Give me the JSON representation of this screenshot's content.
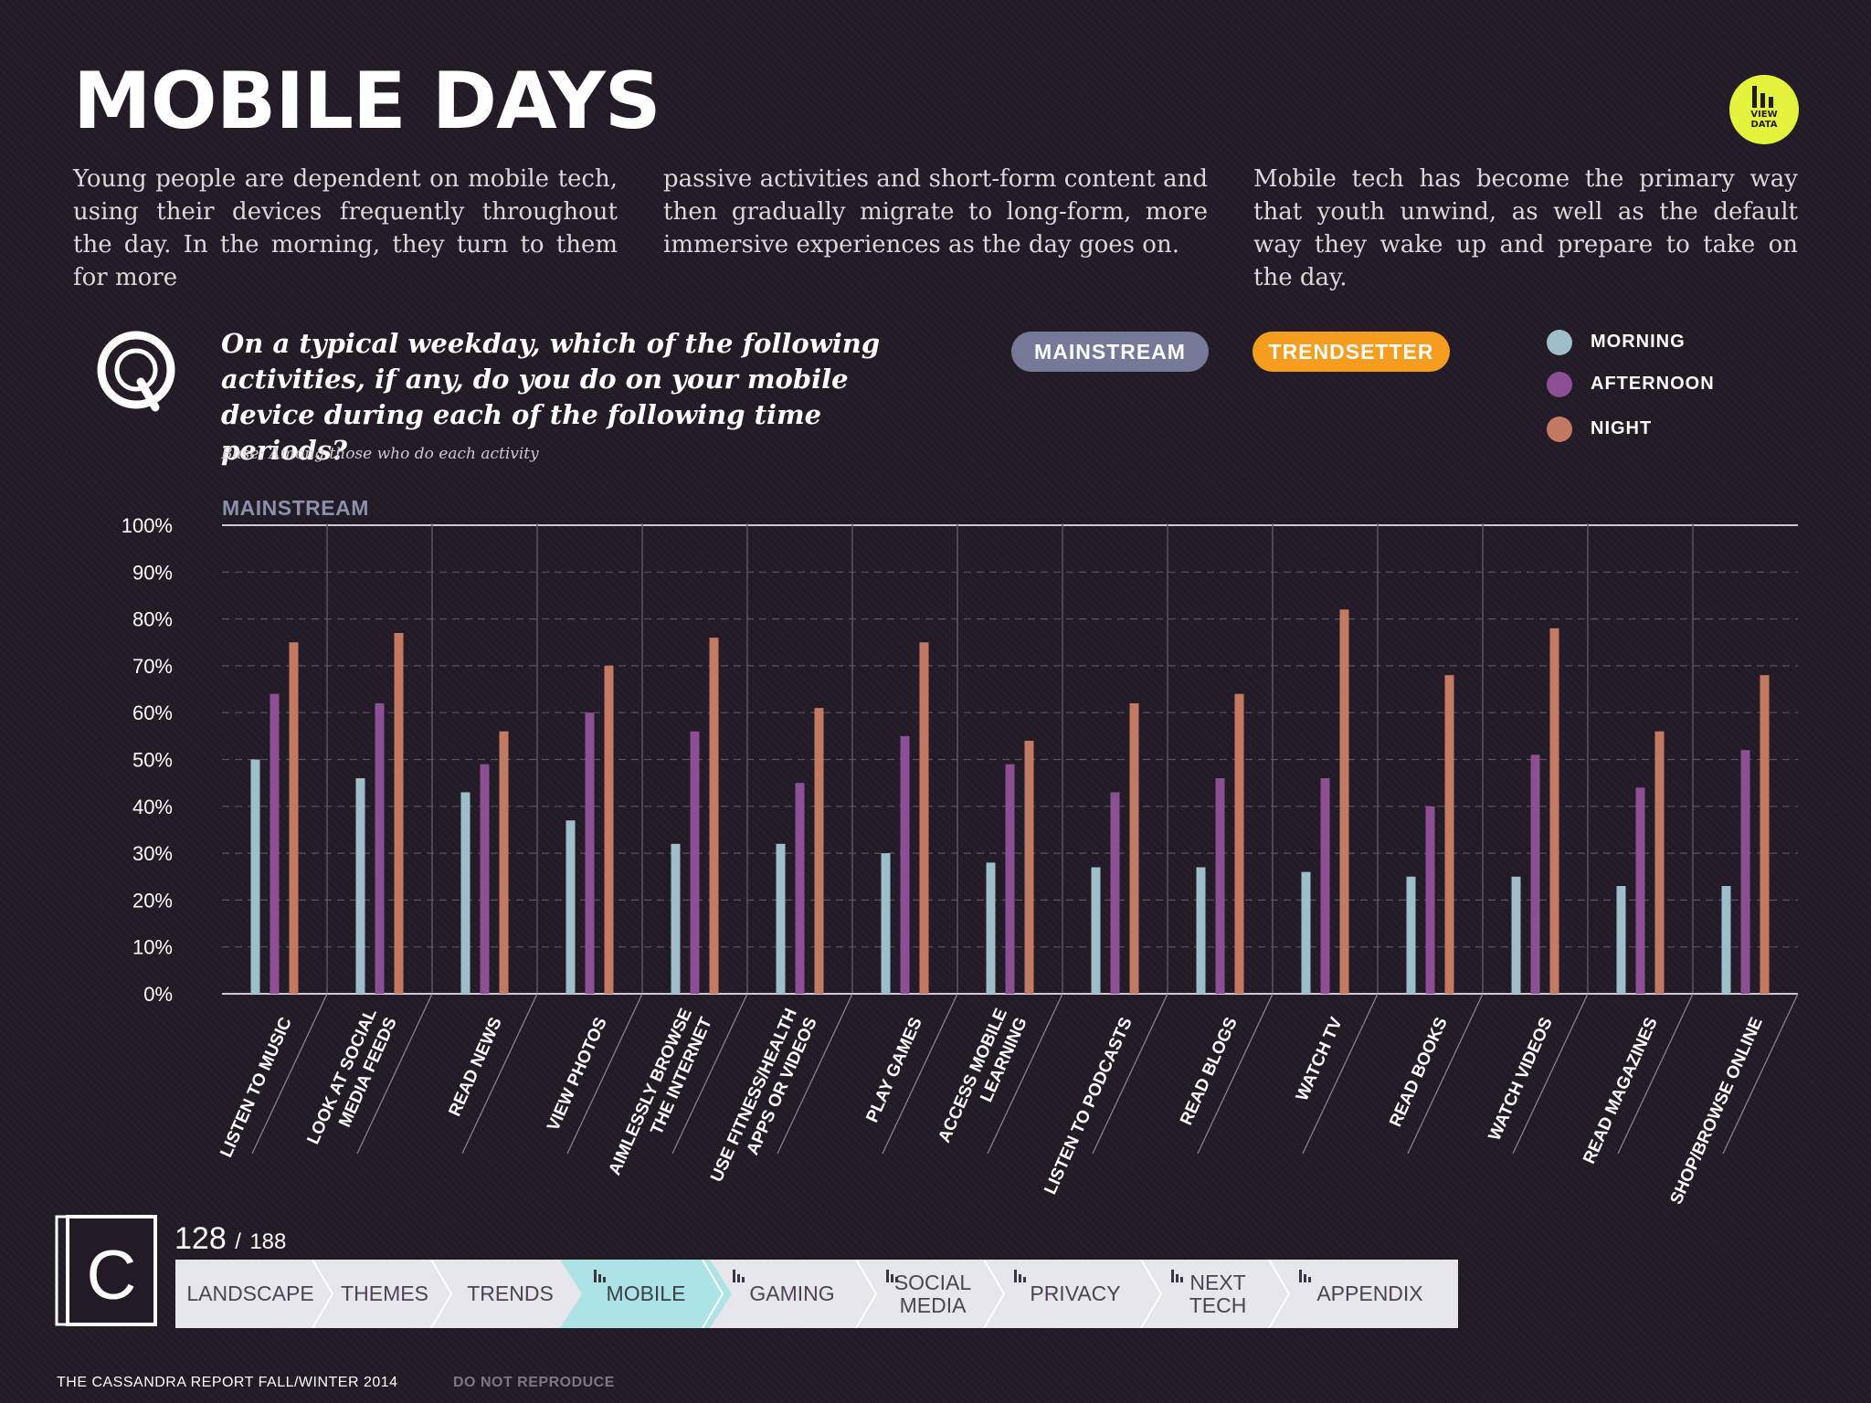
{
  "page": {
    "title": "MOBILE DAYS",
    "intro": [
      "Young people are dependent on mobile tech, using their devices frequently throughout the day. In the morning, they turn to them for more",
      "passive activities and short-form content and then gradually migrate to long-form, more immersive experiences as the day goes on.",
      "Mobile tech has become the primary way that youth unwind, as well as the default way they wake up and prepare to take on the day."
    ],
    "view_data": {
      "line1": "VIEW",
      "line2": "DATA"
    }
  },
  "question": {
    "text": "On a typical weekday, which of the following activities, if any, do you do on your mobile device during each of the following time periods?",
    "base_note": "Base: Among those who do each activity"
  },
  "toggles": {
    "mainstream": "MAINSTREAM",
    "trendsetter": "TRENDSETTER"
  },
  "legend": [
    {
      "label": "MORNING",
      "color": "#9ebfca"
    },
    {
      "label": "AFTERNOON",
      "color": "#8c4f94"
    },
    {
      "label": "NIGHT",
      "color": "#c47a62"
    }
  ],
  "chart_data": {
    "type": "bar",
    "title": "MAINSTREAM",
    "ylim": [
      0,
      100
    ],
    "yticks": [
      "0%",
      "10%",
      "20%",
      "30%",
      "40%",
      "50%",
      "60%",
      "70%",
      "80%",
      "90%",
      "100%"
    ],
    "categories": [
      [
        "LISTEN TO MUSIC"
      ],
      [
        "LOOK AT SOCIAL",
        "MEDIA FEEDS"
      ],
      [
        "READ NEWS"
      ],
      [
        "VIEW PHOTOS"
      ],
      [
        "AIMLESSLY BROWSE",
        "THE INTERNET"
      ],
      [
        "USE FITNESS/HEALTH",
        "APPS OR VIDEOS"
      ],
      [
        "PLAY GAMES"
      ],
      [
        "ACCESS MOBILE",
        "LEARNING"
      ],
      [
        "LISTEN TO PODCASTS"
      ],
      [
        "READ BLOGS"
      ],
      [
        "WATCH TV"
      ],
      [
        "READ BOOKS"
      ],
      [
        "WATCH VIDEOS"
      ],
      [
        "READ MAGAZINES"
      ],
      [
        "SHOP/BROWSE ONLINE"
      ]
    ],
    "series": [
      {
        "name": "MORNING",
        "color": "#9ebfca",
        "values": [
          50,
          46,
          43,
          37,
          32,
          32,
          30,
          28,
          27,
          27,
          26,
          25,
          25,
          23,
          23
        ]
      },
      {
        "name": "AFTERNOON",
        "color": "#8c4f94",
        "values": [
          64,
          62,
          49,
          60,
          56,
          45,
          55,
          49,
          43,
          46,
          46,
          40,
          51,
          44,
          52
        ]
      },
      {
        "name": "NIGHT",
        "color": "#c47a62",
        "values": [
          75,
          77,
          56,
          70,
          76,
          61,
          75,
          54,
          62,
          64,
          82,
          68,
          78,
          56,
          68
        ]
      }
    ]
  },
  "footer": {
    "page_current": "128",
    "page_sep": "/",
    "page_total": "188",
    "logo_letter": "C",
    "left": "THE CASSANDRA REPORT FALL/WINTER 2014",
    "right": "DO NOT REPRODUCE"
  },
  "nav": {
    "tabs": [
      {
        "lines": [
          "LANDSCAPE"
        ],
        "icon": false,
        "active": false
      },
      {
        "lines": [
          "THEMES"
        ],
        "icon": false,
        "active": false
      },
      {
        "lines": [
          "TRENDS"
        ],
        "icon": false,
        "active": false
      },
      {
        "lines": [
          "MOBILE"
        ],
        "icon": true,
        "active": true
      },
      {
        "lines": [
          "GAMING"
        ],
        "icon": true,
        "active": false
      },
      {
        "lines": [
          "SOCIAL",
          "MEDIA"
        ],
        "icon": true,
        "active": false
      },
      {
        "lines": [
          "PRIVACY"
        ],
        "icon": true,
        "active": false
      },
      {
        "lines": [
          "NEXT",
          "TECH"
        ],
        "icon": true,
        "active": false
      },
      {
        "lines": [
          "APPENDIX"
        ],
        "icon": true,
        "active": false
      }
    ],
    "colors": {
      "bg": "#e7e6ed",
      "active": "#aee3e6"
    }
  }
}
